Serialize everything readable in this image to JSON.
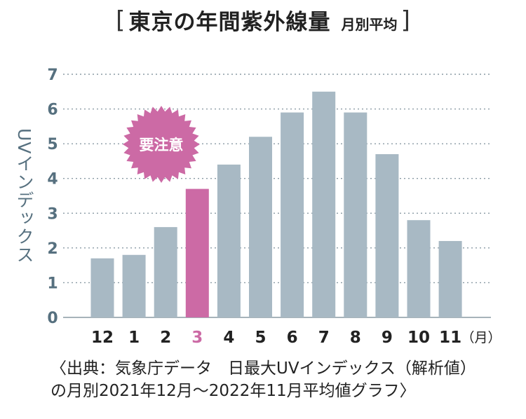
{
  "title": {
    "bracket_open": "[",
    "main": "東京の年間紫外線量",
    "sub": "月別平均",
    "bracket_close": "]"
  },
  "badge": {
    "text": "要注意",
    "color": "#cc6aa5"
  },
  "source": {
    "line1": "〈出典：気象庁データ　日最大UVインデックス（解析値）",
    "line2": "の月別2021年12月〜2022年11月平均値グラフ〉"
  },
  "colors": {
    "bar": "#a8b9c4",
    "highlight": "#cc6aa5",
    "axis_text": "#56707f",
    "grid": "#8a9aa4"
  },
  "chart_data": {
    "type": "bar",
    "categories": [
      "12",
      "1",
      "2",
      "3",
      "4",
      "5",
      "6",
      "7",
      "8",
      "9",
      "10",
      "11"
    ],
    "values": [
      1.7,
      1.8,
      2.6,
      3.7,
      4.4,
      5.2,
      5.9,
      6.5,
      5.9,
      4.7,
      2.8,
      2.2
    ],
    "highlight_category": "3",
    "xunit": "（月）",
    "ylabel": "UVインデックス",
    "yticks": [
      "0",
      "1",
      "2",
      "3",
      "4",
      "5",
      "6",
      "7"
    ],
    "ylim": [
      0,
      7
    ],
    "grid": true
  }
}
